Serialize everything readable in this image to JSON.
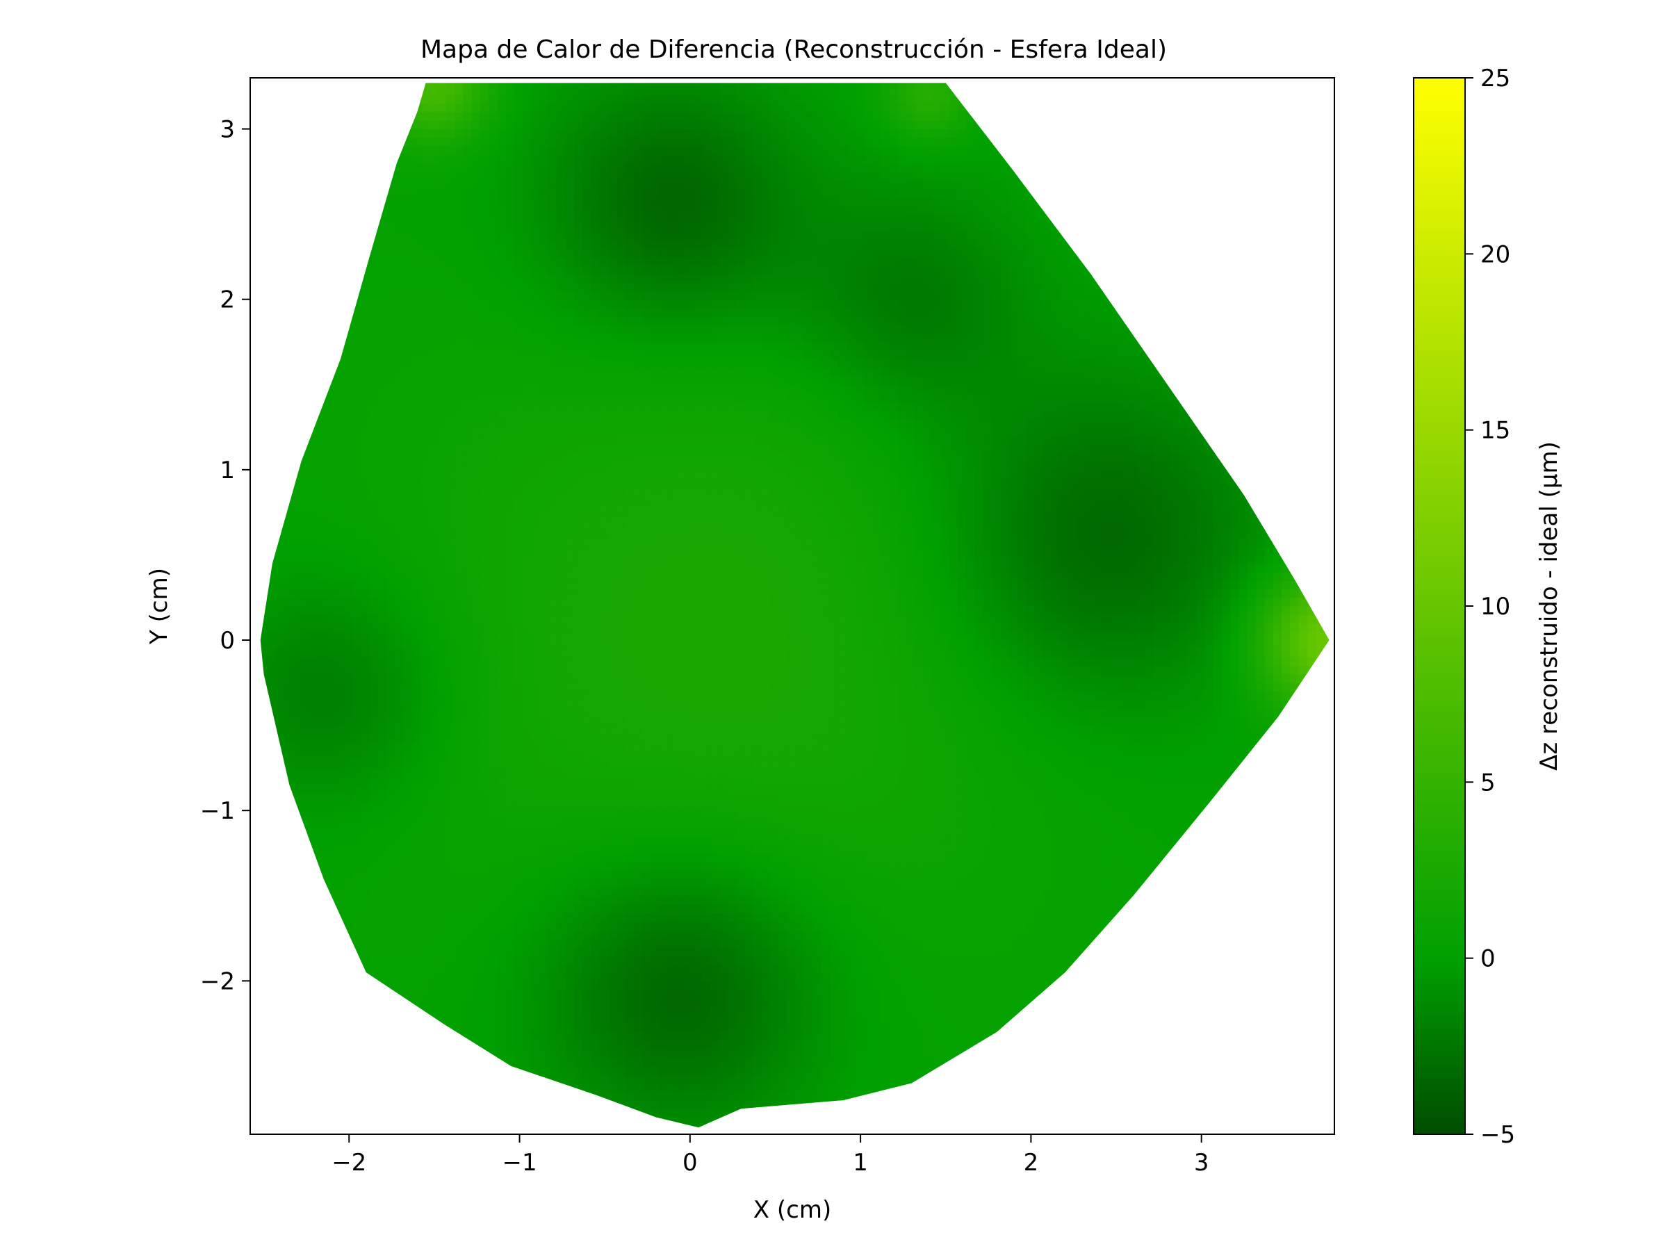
{
  "chart_data": {
    "type": "heatmap",
    "title": "Mapa de Calor de Diferencia (Reconstrucción - Esfera Ideal)",
    "xlabel": "X (cm)",
    "ylabel": "Y (cm)",
    "xlim": [
      -2.58,
      3.78
    ],
    "ylim": [
      -2.9,
      3.3
    ],
    "x_ticks": [
      -2,
      -1,
      0,
      1,
      2,
      3
    ],
    "x_tick_labels": [
      "−2",
      "−1",
      "0",
      "1",
      "2",
      "3"
    ],
    "y_ticks": [
      -2,
      -1,
      0,
      1,
      2,
      3
    ],
    "y_tick_labels": [
      "−2",
      "−1",
      "0",
      "1",
      "2",
      "3"
    ],
    "colorbar": {
      "label": "Δz reconstruido - ideal (µm)",
      "range": [
        -5,
        25
      ],
      "ticks": [
        -5,
        0,
        5,
        10,
        15,
        20,
        25
      ],
      "tick_labels": [
        "−5",
        "0",
        "5",
        "10",
        "15",
        "20",
        "25"
      ],
      "colors": [
        "#004d00",
        "#00a000",
        "#ffff00"
      ]
    },
    "domain_outline": [
      [
        -1.55,
        3.27
      ],
      [
        1.5,
        3.27
      ],
      [
        1.9,
        2.75
      ],
      [
        2.35,
        2.15
      ],
      [
        2.8,
        1.5
      ],
      [
        3.25,
        0.85
      ],
      [
        3.55,
        0.35
      ],
      [
        3.75,
        0.0
      ],
      [
        3.45,
        -0.45
      ],
      [
        3.05,
        -0.95
      ],
      [
        2.6,
        -1.5
      ],
      [
        2.2,
        -1.95
      ],
      [
        1.8,
        -2.3
      ],
      [
        1.3,
        -2.6
      ],
      [
        0.9,
        -2.7
      ],
      [
        0.3,
        -2.75
      ],
      [
        0.05,
        -2.86
      ],
      [
        -0.2,
        -2.8
      ],
      [
        -0.55,
        -2.67
      ],
      [
        -1.05,
        -2.5
      ],
      [
        -1.45,
        -2.25
      ],
      [
        -1.9,
        -1.95
      ],
      [
        -2.15,
        -1.4
      ],
      [
        -2.35,
        -0.85
      ],
      [
        -2.5,
        -0.2
      ],
      [
        -2.52,
        0.0
      ],
      [
        -2.45,
        0.45
      ],
      [
        -2.28,
        1.05
      ],
      [
        -2.05,
        1.65
      ],
      [
        -1.88,
        2.25
      ],
      [
        -1.72,
        2.8
      ],
      [
        -1.6,
        3.1
      ]
    ],
    "surface": {
      "base_value": 0.2,
      "features": [
        {
          "x": 0.2,
          "y": 0.0,
          "sigma": 1.4,
          "amplitude": 2.2
        },
        {
          "x": -0.1,
          "y": 2.55,
          "sigma": 0.55,
          "amplitude": -4.0
        },
        {
          "x": 1.3,
          "y": 2.0,
          "sigma": 0.5,
          "amplitude": -2.8
        },
        {
          "x": 2.4,
          "y": 0.6,
          "sigma": 0.7,
          "amplitude": -4.0
        },
        {
          "x": -0.05,
          "y": -2.05,
          "sigma": 0.6,
          "amplitude": -4.2
        },
        {
          "x": -2.1,
          "y": -0.3,
          "sigma": 0.5,
          "amplitude": -2.6
        },
        {
          "x": 3.75,
          "y": 0.0,
          "sigma": 0.28,
          "amplitude": 10.5
        },
        {
          "x": -1.5,
          "y": 3.27,
          "sigma": 0.22,
          "amplitude": 6.5
        },
        {
          "x": 1.4,
          "y": 3.2,
          "sigma": 0.18,
          "amplitude": 3.5
        }
      ]
    }
  }
}
